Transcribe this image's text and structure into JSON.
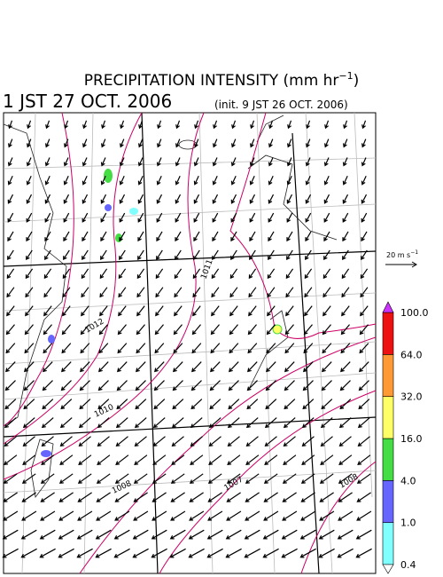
{
  "header": {
    "title": {
      "main": "PRECIPITATION INTENSITY (mm hr",
      "sup": "−1",
      "close": ")"
    },
    "valid_time": "1 JST 27 OCT. 2006",
    "init_time": "(init. 9 JST 26 OCT. 2006)"
  },
  "wind_legend": {
    "label": "20 m s",
    "sup": "−1"
  },
  "colorbar": {
    "over_color": "#cc33ff",
    "under_color": "#ffffff",
    "levels": [
      "0.4",
      "1.0",
      "4.0",
      "16.0",
      "32.0",
      "64.0",
      "100.0"
    ],
    "colors": [
      "#80ffff",
      "#6666ff",
      "#44dd44",
      "#ffff66",
      "#ff9933",
      "#ee1111"
    ]
  },
  "map": {
    "isobar_labels": [
      "1011",
      "1012",
      "1010",
      "1008",
      "1007",
      "1008"
    ]
  }
}
